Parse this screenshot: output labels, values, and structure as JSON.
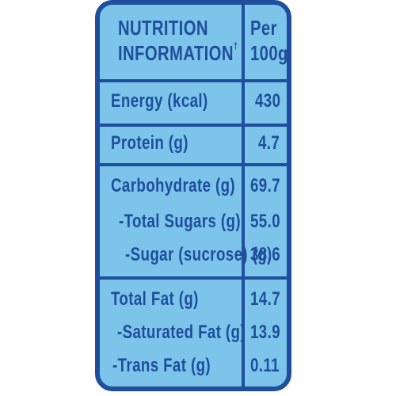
{
  "header": {
    "title_line1": "NUTRITION",
    "title_line2": "INFORMATION",
    "title_mark": "†",
    "per_line1": "Per",
    "per_line2": "100g"
  },
  "rows": [
    {
      "label": "Energy (kcal)",
      "value": "430"
    },
    {
      "label": "Protein (g)",
      "value": "4.7"
    },
    {
      "label": "Carbohydrate (g)",
      "value": "69.7"
    },
    {
      "label": "-Total Sugars (g)",
      "value": "55.0"
    },
    {
      "label": "-Sugar (sucrose) (g)",
      "value": "38.6"
    },
    {
      "label": "Total Fat (g)",
      "value": "14.7"
    },
    {
      "label": "-Saturated Fat (g)",
      "value": "13.9"
    },
    {
      "label": "-Trans Fat (g)",
      "value": "0.11"
    }
  ],
  "colors": {
    "background": "#7cc4ea",
    "text_and_lines": "#1f4e9c"
  }
}
